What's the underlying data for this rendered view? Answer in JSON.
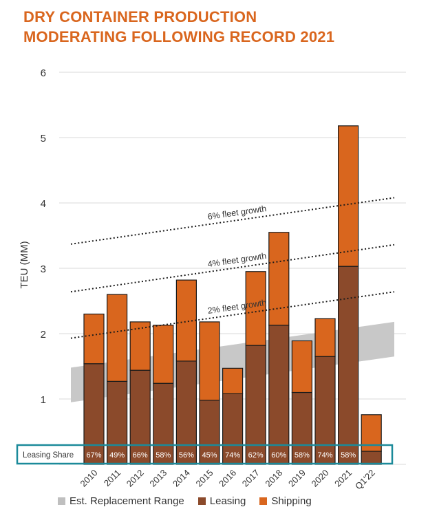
{
  "title": {
    "line1": "DRY CONTAINER PRODUCTION",
    "line2": "MODERATING FOLLOWING RECORD 2021"
  },
  "colors": {
    "title": "#D9661E",
    "leasing": "#8B4A2B",
    "shipping": "#D9661E",
    "replacement": "#C8C8C8",
    "leasing_share_box": "#1B8A9A",
    "grid": "#D9D9D9"
  },
  "chart_data": {
    "type": "bar",
    "stacked": true,
    "ylabel": "TEU (MM)",
    "ylim": [
      0,
      6
    ],
    "yticks": [
      "1",
      "2",
      "3",
      "4",
      "5",
      "6"
    ],
    "categories": [
      "2010",
      "2011",
      "2012",
      "2013",
      "2014",
      "2015",
      "2016",
      "2017",
      "2018",
      "2019",
      "2020",
      "2021",
      "Q1'22"
    ],
    "series": [
      {
        "name": "Leasing",
        "values": [
          1.54,
          1.27,
          1.44,
          1.24,
          1.58,
          0.98,
          1.08,
          1.82,
          2.13,
          1.1,
          1.65,
          3.03,
          0.2
        ]
      },
      {
        "name": "Shipping",
        "values": [
          0.76,
          1.33,
          0.74,
          0.89,
          1.24,
          1.2,
          0.39,
          1.13,
          1.42,
          0.79,
          0.58,
          2.15,
          0.56
        ]
      }
    ],
    "leasing_share": {
      "label": "Leasing Share",
      "values": [
        "67%",
        "49%",
        "66%",
        "58%",
        "56%",
        "45%",
        "74%",
        "62%",
        "60%",
        "58%",
        "74%",
        "58%",
        ""
      ]
    },
    "replacement_range": {
      "name": "Est. Replacement Range",
      "from": "2010",
      "to": "2021",
      "lower_start": 0.95,
      "lower_end": 1.65,
      "upper_start": 1.48,
      "upper_end": 2.18
    },
    "growth_lines": [
      {
        "label": "6% fleet growth",
        "start": 3.37,
        "end": 4.08
      },
      {
        "label": "4% fleet growth",
        "start": 2.64,
        "end": 3.36
      },
      {
        "label": "2% fleet growth",
        "start": 1.93,
        "end": 2.64
      }
    ],
    "legend": [
      {
        "name": "Est. Replacement Range",
        "color": "#BFBFBF"
      },
      {
        "name": "Leasing",
        "color": "#8B4A2B"
      },
      {
        "name": "Shipping",
        "color": "#D9661E"
      }
    ]
  }
}
